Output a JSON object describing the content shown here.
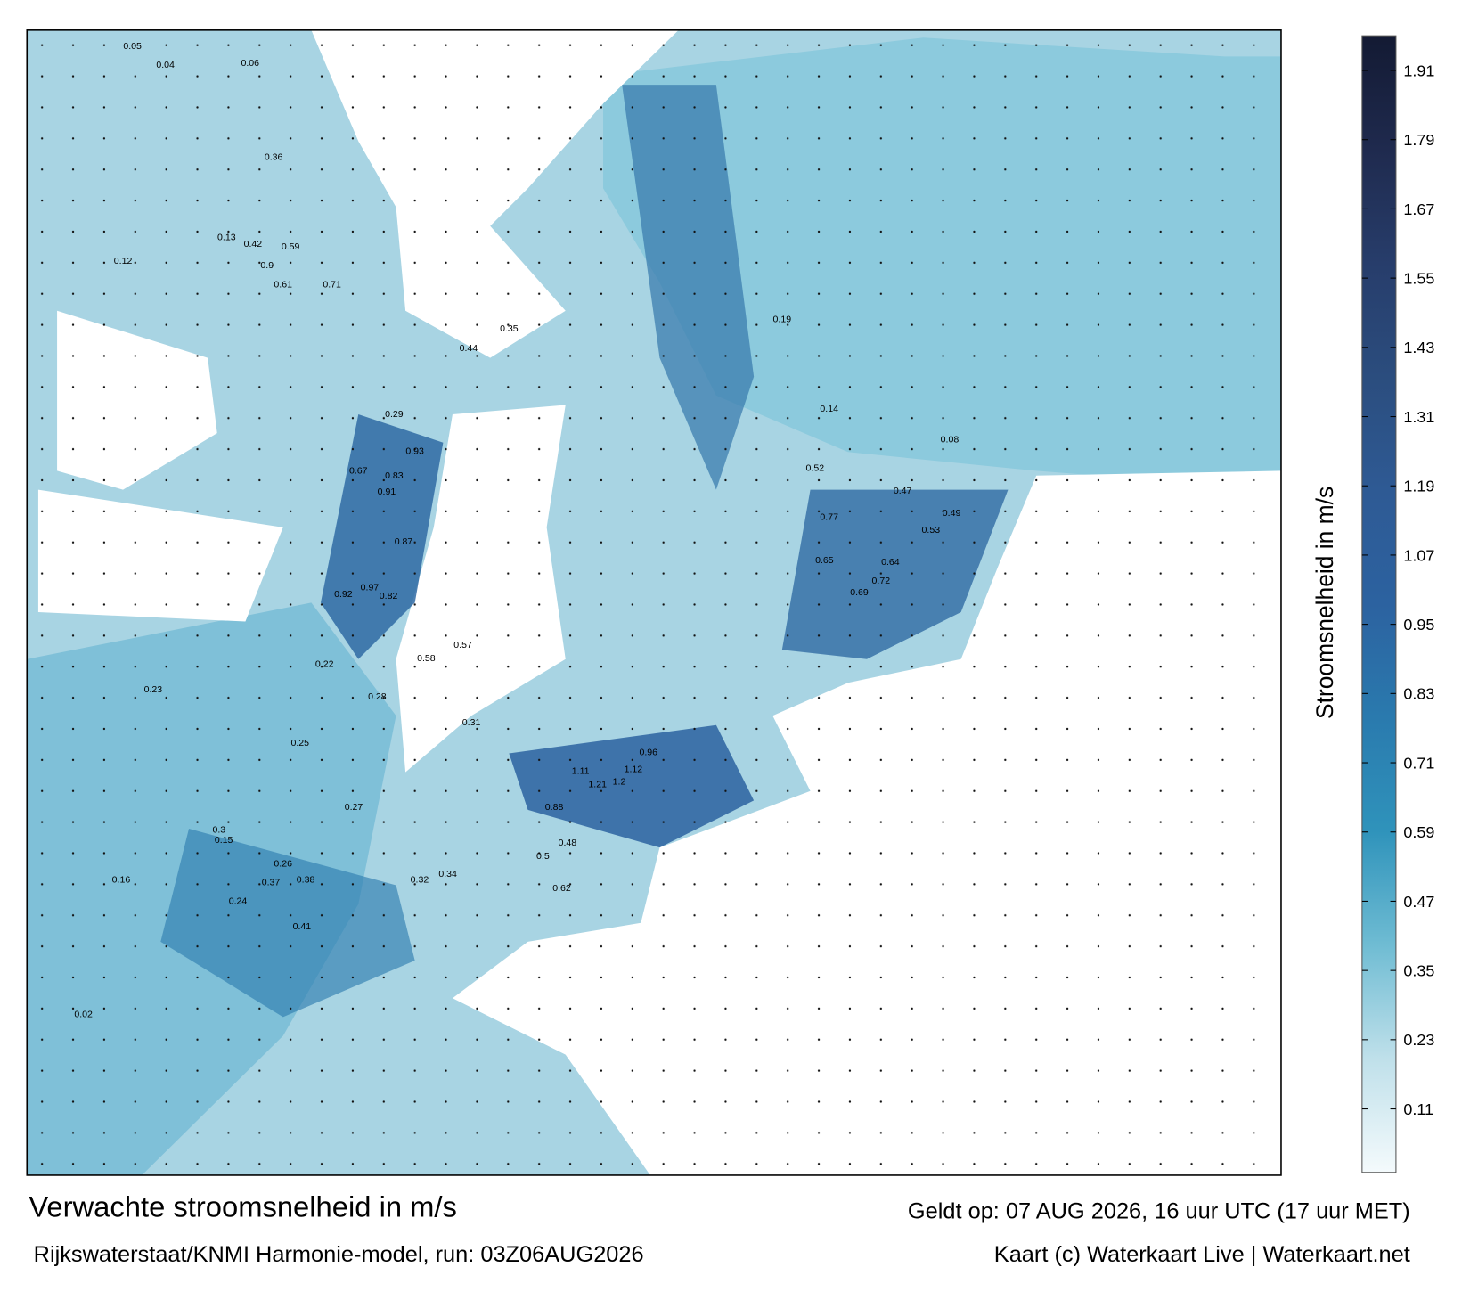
{
  "title": "Verwachte stroomsnelheid in m/s",
  "subtitle": "Rijkswaterstaat/KNMI Harmonie-model, run: 03Z06AUG2026",
  "valid_time": "Geldt op: 07 AUG 2026, 16 uur UTC (17 uur MET)",
  "credit": "Kaart (c) Waterkaart Live | Waterkaart.net",
  "colorbar": {
    "label": "Stroomsnelheid in m/s",
    "lim": [
      0,
      1.97
    ],
    "ticks": [
      0.11,
      0.23,
      0.35,
      0.47,
      0.59,
      0.71,
      0.83,
      0.95,
      1.07,
      1.19,
      1.31,
      1.43,
      1.55,
      1.67,
      1.79,
      1.91
    ],
    "colors": [
      "#f4fafc",
      "#bfe0ea",
      "#6fbcd3",
      "#2f93bb",
      "#2a7aae",
      "#2c62a0",
      "#2e5a94",
      "#2b4d7e",
      "#273d6b",
      "#1f2a4e",
      "#131a33"
    ]
  },
  "map_labels": [
    0.05,
    0.04,
    0.06,
    0.12,
    0.13,
    0.42,
    0.59,
    0.9,
    0.71,
    0.61,
    0.35,
    0.44,
    0.29,
    0.93,
    0.67,
    0.91,
    0.83,
    0.87,
    0.92,
    0.97,
    0.82,
    0.58,
    0.57,
    0.22,
    0.28,
    0.27,
    0.26,
    0.3,
    0.32,
    0.37,
    0.38,
    0.36,
    0.31,
    0.25,
    0.23,
    0.16,
    0.15,
    0.24,
    0.41,
    0.34,
    0.52,
    0.77,
    0.65,
    0.72,
    0.69,
    0.64,
    0.53,
    0.49,
    0.47,
    1.11,
    1.21,
    1.2,
    0.96,
    1.12,
    0.88,
    0.62,
    0.5,
    0.48,
    0.19,
    0.14,
    0.02,
    0.08
  ]
}
